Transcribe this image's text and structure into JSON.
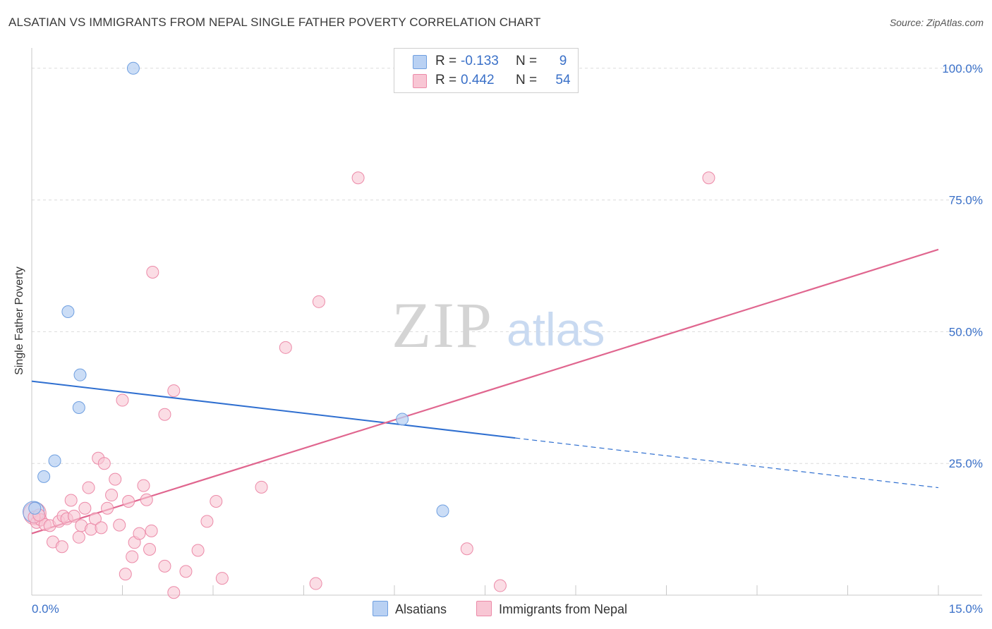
{
  "title": "ALSATIAN VS IMMIGRANTS FROM NEPAL SINGLE FATHER POVERTY CORRELATION CHART",
  "source": "Source: ZipAtlas.com",
  "watermark": {
    "zip": "ZIP",
    "atlas": "atlas"
  },
  "colors": {
    "blue_fill": "#b9d1f3",
    "blue_stroke": "#6f9fe0",
    "blue_line": "#2f6fd0",
    "pink_fill": "#f8c6d4",
    "pink_stroke": "#ec8aa8",
    "pink_line": "#e0668f",
    "tick_text": "#3a70c8",
    "grid": "#dcdcdc"
  },
  "legend": {
    "series1": {
      "r_label": "R =",
      "r_value": "-0.133",
      "n_label": "N =",
      "n_value": "9"
    },
    "series2": {
      "r_label": "R =",
      "r_value": "0.442",
      "n_label": "N =",
      "n_value": "54"
    }
  },
  "bottom_legend": {
    "series1": "Alsatians",
    "series2": "Immigrants from Nepal"
  },
  "chart_data": {
    "type": "scatter",
    "title": "ALSATIAN VS IMMIGRANTS FROM NEPAL SINGLE FATHER POVERTY CORRELATION CHART",
    "xlabel": "",
    "ylabel": "Single Father Poverty",
    "xlim": [
      0,
      15
    ],
    "ylim": [
      0,
      100
    ],
    "x_tick_labels": [
      "0.0%",
      "15.0%"
    ],
    "y_ticks": [
      25,
      50,
      75,
      100
    ],
    "y_tick_labels": [
      "25.0%",
      "50.0%",
      "75.0%",
      "100.0%"
    ],
    "series": [
      {
        "name": "Alsatians",
        "color": "blue",
        "points": [
          {
            "x": 0.05,
            "y": 16.5
          },
          {
            "x": 0.2,
            "y": 22.5
          },
          {
            "x": 0.38,
            "y": 25.5
          },
          {
            "x": 0.6,
            "y": 53.8
          },
          {
            "x": 0.8,
            "y": 41.8
          },
          {
            "x": 0.78,
            "y": 35.6
          },
          {
            "x": 1.68,
            "y": 100.0
          },
          {
            "x": 6.13,
            "y": 33.4
          },
          {
            "x": 6.8,
            "y": 16.0
          }
        ],
        "trend": {
          "x0": 0,
          "y0": 40.6,
          "x_solid_end": 8.0,
          "x_dash_end": 15.0,
          "y_end": 20.4
        }
      },
      {
        "name": "Immigrants from Nepal",
        "color": "pink",
        "points": [
          {
            "x": 0.08,
            "y": 13.8
          },
          {
            "x": 0.15,
            "y": 14.3
          },
          {
            "x": 0.22,
            "y": 13.4
          },
          {
            "x": 0.3,
            "y": 13.2
          },
          {
            "x": 0.35,
            "y": 10.1
          },
          {
            "x": 0.45,
            "y": 14.0
          },
          {
            "x": 0.5,
            "y": 9.2
          },
          {
            "x": 0.52,
            "y": 15.0
          },
          {
            "x": 0.58,
            "y": 14.5
          },
          {
            "x": 0.65,
            "y": 18.0
          },
          {
            "x": 0.7,
            "y": 15.0
          },
          {
            "x": 0.78,
            "y": 11.0
          },
          {
            "x": 0.82,
            "y": 13.2
          },
          {
            "x": 0.88,
            "y": 16.5
          },
          {
            "x": 0.94,
            "y": 20.4
          },
          {
            "x": 0.98,
            "y": 12.5
          },
          {
            "x": 1.05,
            "y": 14.5
          },
          {
            "x": 1.1,
            "y": 26.0
          },
          {
            "x": 1.15,
            "y": 12.8
          },
          {
            "x": 1.2,
            "y": 25.0
          },
          {
            "x": 1.25,
            "y": 16.5
          },
          {
            "x": 1.32,
            "y": 19.0
          },
          {
            "x": 1.38,
            "y": 22.0
          },
          {
            "x": 1.45,
            "y": 13.3
          },
          {
            "x": 1.5,
            "y": 37.0
          },
          {
            "x": 1.55,
            "y": 4.0
          },
          {
            "x": 1.6,
            "y": 17.8
          },
          {
            "x": 1.66,
            "y": 7.3
          },
          {
            "x": 1.7,
            "y": 10.0
          },
          {
            "x": 1.78,
            "y": 11.7
          },
          {
            "x": 1.85,
            "y": 20.8
          },
          {
            "x": 1.9,
            "y": 18.1
          },
          {
            "x": 1.95,
            "y": 8.7
          },
          {
            "x": 1.98,
            "y": 12.2
          },
          {
            "x": 2.0,
            "y": 61.3
          },
          {
            "x": 2.2,
            "y": 5.5
          },
          {
            "x": 2.2,
            "y": 34.3
          },
          {
            "x": 2.35,
            "y": 38.8
          },
          {
            "x": 2.35,
            "y": 0.5
          },
          {
            "x": 2.55,
            "y": 4.5
          },
          {
            "x": 2.75,
            "y": 8.5
          },
          {
            "x": 2.9,
            "y": 14.0
          },
          {
            "x": 3.05,
            "y": 17.8
          },
          {
            "x": 3.15,
            "y": 3.2
          },
          {
            "x": 3.8,
            "y": 20.5
          },
          {
            "x": 4.2,
            "y": 47.0
          },
          {
            "x": 4.7,
            "y": 2.2
          },
          {
            "x": 4.75,
            "y": 55.7
          },
          {
            "x": 5.4,
            "y": 79.2
          },
          {
            "x": 7.2,
            "y": 8.8
          },
          {
            "x": 7.75,
            "y": 1.8
          },
          {
            "x": 11.2,
            "y": 79.2
          },
          {
            "x": 0.04,
            "y": 14.8
          },
          {
            "x": 0.12,
            "y": 15.2
          }
        ],
        "trend": {
          "x0": 0,
          "y0": 11.7,
          "x1": 15.0,
          "y1": 65.6
        }
      }
    ]
  }
}
